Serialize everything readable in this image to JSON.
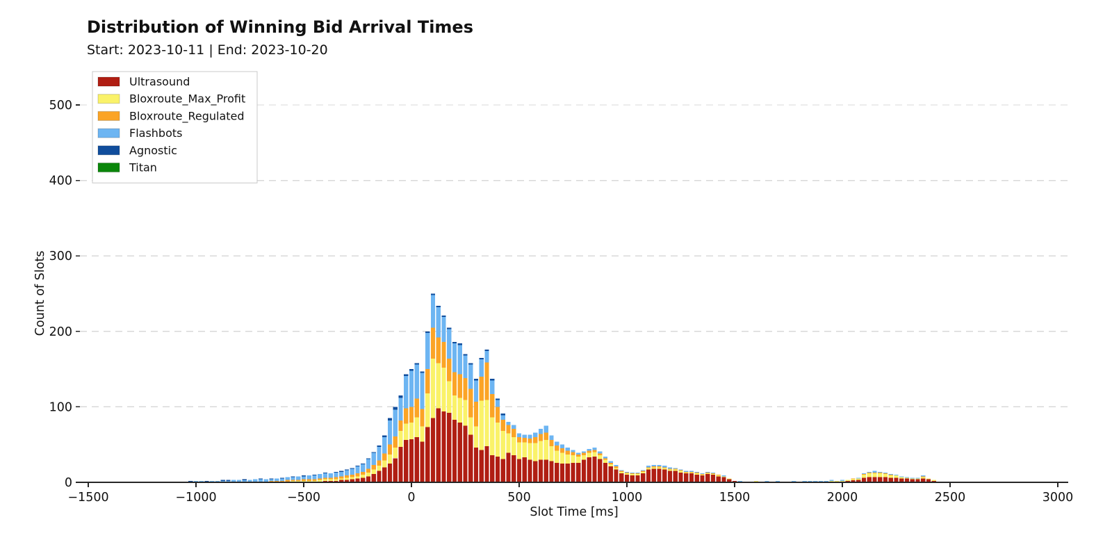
{
  "chart_data": {
    "type": "bar",
    "stacked": true,
    "title": "Distribution of Winning Bid Arrival Times",
    "subtitle": "Start: 2023-10-11 | End: 2023-10-20",
    "xlabel": "Slot Time [ms]",
    "ylabel": "Count of Slots",
    "xlim": [
      -1540,
      3050
    ],
    "ylim": [
      0,
      540
    ],
    "grid": "horizontal-dashed",
    "grid_color": "#d9d9d9",
    "legend_position": "upper-left",
    "bin_width_ms": 25,
    "xticks": [
      {
        "v": -1500,
        "label": "−1500"
      },
      {
        "v": -1000,
        "label": "−1000"
      },
      {
        "v": -500,
        "label": "−500"
      },
      {
        "v": 0,
        "label": "0"
      },
      {
        "v": 500,
        "label": "500"
      },
      {
        "v": 1000,
        "label": "1000"
      },
      {
        "v": 1500,
        "label": "1500"
      },
      {
        "v": 2000,
        "label": "2000"
      },
      {
        "v": 2500,
        "label": "2500"
      },
      {
        "v": 3000,
        "label": "3000"
      }
    ],
    "yticks": [
      {
        "v": 0,
        "label": "0"
      },
      {
        "v": 100,
        "label": "100"
      },
      {
        "v": 200,
        "label": "200"
      },
      {
        "v": 300,
        "label": "300"
      },
      {
        "v": 400,
        "label": "400"
      },
      {
        "v": 500,
        "label": "500"
      }
    ],
    "x": [
      -1175,
      -1150,
      -1125,
      -1100,
      -1075,
      -1050,
      -1025,
      -1000,
      -975,
      -950,
      -925,
      -900,
      -875,
      -850,
      -825,
      -800,
      -775,
      -750,
      -725,
      -700,
      -675,
      -650,
      -625,
      -600,
      -575,
      -550,
      -525,
      -500,
      -475,
      -450,
      -425,
      -400,
      -375,
      -350,
      -325,
      -300,
      -275,
      -250,
      -225,
      -200,
      -175,
      -150,
      -125,
      -100,
      -75,
      -50,
      -25,
      0,
      25,
      50,
      75,
      100,
      125,
      150,
      175,
      200,
      225,
      250,
      275,
      300,
      325,
      350,
      375,
      400,
      425,
      450,
      475,
      500,
      525,
      550,
      575,
      600,
      625,
      650,
      675,
      700,
      725,
      750,
      775,
      800,
      825,
      850,
      875,
      900,
      925,
      950,
      975,
      1000,
      1025,
      1050,
      1075,
      1100,
      1125,
      1150,
      1175,
      1200,
      1225,
      1250,
      1275,
      1300,
      1325,
      1350,
      1375,
      1400,
      1425,
      1450,
      1475,
      1500,
      1525,
      1550,
      1575,
      1600,
      1625,
      1650,
      1675,
      1700,
      1725,
      1750,
      1775,
      1800,
      1825,
      1850,
      1875,
      1900,
      1925,
      1950,
      1975,
      2000,
      2025,
      2050,
      2075,
      2100,
      2125,
      2150,
      2175,
      2200,
      2225,
      2250,
      2275,
      2300,
      2325,
      2350,
      2375,
      2400,
      2425,
      2450,
      2475
    ],
    "series": [
      {
        "name": "Ultrasound",
        "color": "#B01E13",
        "values": [
          0,
          0,
          0,
          0,
          0,
          0,
          0,
          0,
          0,
          0,
          0,
          0,
          0,
          0,
          0,
          0,
          0,
          0,
          0,
          0,
          0,
          0,
          0,
          0,
          0,
          1,
          1,
          1,
          1,
          1,
          1,
          2,
          2,
          2,
          3,
          3,
          4,
          5,
          6,
          8,
          11,
          15,
          20,
          25,
          32,
          47,
          56,
          57,
          60,
          54,
          73,
          85,
          98,
          94,
          92,
          83,
          79,
          75,
          63,
          46,
          43,
          48,
          36,
          34,
          31,
          39,
          36,
          31,
          33,
          30,
          28,
          30,
          30,
          28,
          26,
          25,
          25,
          26,
          26,
          30,
          33,
          34,
          31,
          26,
          21,
          17,
          12,
          10,
          9,
          9,
          12,
          17,
          18,
          18,
          17,
          15,
          15,
          13,
          12,
          12,
          10,
          9,
          11,
          10,
          8,
          7,
          4,
          2,
          0,
          0,
          0,
          1,
          0,
          0,
          0,
          0,
          0,
          0,
          0,
          0,
          1,
          0,
          0,
          1,
          0,
          1,
          1,
          1,
          2,
          3,
          3,
          6,
          7,
          7,
          7,
          7,
          6,
          6,
          5,
          5,
          4,
          4,
          5,
          4,
          2,
          1,
          1
        ]
      },
      {
        "name": "Bloxroute_Max_Profit",
        "color": "#FAF269",
        "values": [
          0,
          0,
          0,
          0,
          0,
          0,
          0,
          0,
          0,
          0,
          0,
          0,
          0,
          0,
          0,
          0,
          0,
          0,
          0,
          0,
          0,
          1,
          1,
          1,
          1,
          1,
          1,
          1,
          1,
          1,
          2,
          2,
          2,
          2,
          2,
          3,
          3,
          3,
          4,
          5,
          6,
          7,
          9,
          12,
          14,
          21,
          22,
          22,
          26,
          20,
          45,
          79,
          60,
          58,
          42,
          32,
          33,
          34,
          23,
          28,
          65,
          61,
          50,
          45,
          37,
          26,
          24,
          22,
          20,
          22,
          24,
          25,
          26,
          20,
          16,
          14,
          12,
          10,
          8,
          6,
          6,
          6,
          5,
          4,
          3,
          2,
          2,
          2,
          2,
          2,
          2,
          2,
          2,
          2,
          2,
          2,
          2,
          2,
          1,
          1,
          2,
          1,
          1,
          1,
          1,
          1,
          1,
          0,
          1,
          1,
          0,
          1,
          0,
          1,
          0,
          1,
          0,
          0,
          1,
          1,
          0,
          1,
          0,
          0,
          1,
          1,
          1,
          1,
          1,
          1,
          2,
          4,
          5,
          5,
          5,
          4,
          3,
          3,
          2,
          1,
          1,
          1,
          2,
          1,
          1,
          0,
          0
        ]
      },
      {
        "name": "Bloxroute_Regulated",
        "color": "#FBA426",
        "values": [
          0,
          0,
          0,
          0,
          0,
          0,
          0,
          0,
          0,
          0,
          0,
          0,
          1,
          0,
          1,
          1,
          1,
          1,
          1,
          1,
          1,
          1,
          1,
          1,
          2,
          1,
          1,
          2,
          2,
          2,
          2,
          2,
          2,
          3,
          3,
          3,
          3,
          4,
          4,
          5,
          6,
          7,
          9,
          13,
          15,
          14,
          20,
          21,
          25,
          23,
          32,
          41,
          34,
          34,
          30,
          31,
          31,
          29,
          38,
          33,
          32,
          50,
          31,
          21,
          15,
          11,
          11,
          7,
          6,
          6,
          8,
          9,
          10,
          8,
          7,
          6,
          5,
          4,
          3,
          3,
          3,
          3,
          2,
          2,
          2,
          2,
          1,
          1,
          1,
          1,
          1,
          1,
          1,
          1,
          1,
          1,
          1,
          1,
          1,
          1,
          1,
          1,
          1,
          1,
          1,
          0,
          0,
          0,
          0,
          0,
          0,
          0,
          0,
          0,
          0,
          0,
          0,
          0,
          0,
          0,
          0,
          0,
          0,
          0,
          0,
          0,
          0,
          0,
          0,
          1,
          0,
          1,
          1,
          1,
          1,
          1,
          1,
          0,
          0,
          0,
          0,
          0,
          1,
          0,
          0,
          0,
          0
        ]
      },
      {
        "name": "Flashbots",
        "color": "#6DB5F2",
        "values": [
          1,
          1,
          0,
          1,
          1,
          1,
          1,
          2,
          2,
          1,
          2,
          2,
          1,
          2,
          2,
          2,
          2,
          2,
          3,
          3,
          3,
          2,
          3,
          3,
          4,
          4,
          5,
          4,
          5,
          5,
          6,
          6,
          6,
          6,
          6,
          7,
          8,
          9,
          10,
          13,
          16,
          18,
          22,
          32,
          35,
          30,
          43,
          48,
          45,
          48,
          48,
          43,
          40,
          33,
          39,
          38,
          39,
          30,
          32,
          28,
          23,
          15,
          18,
          9,
          6,
          4,
          5,
          5,
          4,
          5,
          6,
          7,
          9,
          6,
          5,
          5,
          4,
          3,
          2,
          2,
          2,
          3,
          3,
          2,
          2,
          2,
          1,
          1,
          1,
          1,
          1,
          2,
          2,
          2,
          2,
          2,
          1,
          1,
          1,
          1,
          1,
          1,
          1,
          1,
          0,
          1,
          0,
          0,
          1,
          0,
          1,
          0,
          1,
          1,
          1,
          1,
          1,
          1,
          1,
          0,
          1,
          1,
          2,
          1,
          1,
          1,
          0,
          1,
          0,
          0,
          1,
          1,
          1,
          2,
          1,
          1,
          1,
          1,
          1,
          1,
          1,
          1,
          1,
          0,
          0,
          0,
          0
        ]
      },
      {
        "name": "Agnostic",
        "color": "#104D9C",
        "values": [
          0,
          0,
          0,
          0,
          0,
          0,
          1,
          0,
          0,
          1,
          0,
          0,
          1,
          1,
          0,
          0,
          1,
          0,
          0,
          1,
          0,
          1,
          0,
          1,
          0,
          1,
          0,
          1,
          0,
          1,
          0,
          1,
          0,
          1,
          1,
          1,
          1,
          1,
          1,
          1,
          1,
          2,
          2,
          3,
          4,
          3,
          2,
          2,
          2,
          2,
          2,
          2,
          2,
          2,
          2,
          2,
          2,
          2,
          2,
          2,
          2,
          2,
          2,
          2,
          2,
          0,
          0,
          0,
          0,
          0,
          0,
          0,
          0,
          0,
          0,
          0,
          0,
          0,
          0,
          0,
          0,
          0,
          0,
          0,
          0,
          0,
          0,
          0,
          0,
          0,
          0,
          0,
          0,
          0,
          0,
          0,
          0,
          0,
          0,
          0,
          0,
          0,
          0,
          0,
          0,
          0,
          0,
          0,
          0,
          0,
          0,
          0,
          0,
          0,
          0,
          0,
          0,
          0,
          0,
          0,
          0,
          0,
          0,
          0,
          0,
          0,
          0,
          0,
          0,
          0,
          0,
          0,
          0,
          0,
          0,
          0,
          0,
          0,
          0,
          0,
          0,
          0,
          0,
          0,
          0,
          0,
          0
        ]
      },
      {
        "name": "Titan",
        "color": "#0A860A",
        "values": [
          0,
          0,
          0,
          0,
          0,
          0,
          0,
          0,
          0,
          0,
          0,
          0,
          0,
          0,
          0,
          0,
          0,
          0,
          0,
          0,
          0,
          0,
          0,
          0,
          0,
          0,
          0,
          0,
          0,
          0,
          0,
          0,
          0,
          0,
          0,
          0,
          0,
          0,
          0,
          0,
          0,
          0,
          0,
          0,
          0,
          0,
          0,
          0,
          0,
          0,
          0,
          0,
          0,
          0,
          0,
          0,
          0,
          0,
          0,
          0,
          0,
          0,
          0,
          0,
          0,
          0,
          0,
          0,
          0,
          0,
          0,
          0,
          0,
          0,
          0,
          0,
          0,
          0,
          0,
          0,
          0,
          0,
          0,
          0,
          0,
          0,
          0,
          0,
          0,
          0,
          0,
          0,
          0,
          0,
          0,
          0,
          0,
          0,
          0,
          0,
          0,
          0,
          0,
          0,
          0,
          0,
          0,
          0,
          0,
          0,
          0,
          0,
          0,
          0,
          0,
          0,
          0,
          0,
          0,
          0,
          0,
          0,
          0,
          0,
          0,
          0,
          0,
          0,
          0,
          0,
          0,
          0,
          0,
          0,
          0,
          0,
          0,
          0,
          0,
          0,
          0,
          0,
          0,
          0,
          0,
          0,
          0
        ]
      }
    ]
  }
}
